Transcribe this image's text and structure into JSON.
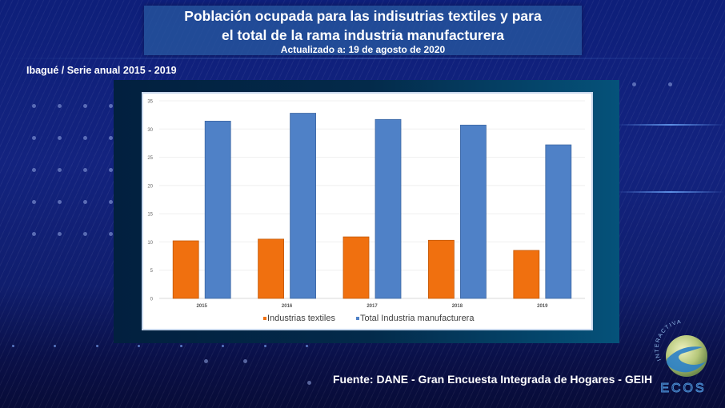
{
  "header": {
    "title_line1": "Población ocupada para las indisutrias textiles y para",
    "title_line2": "el total de la rama industria manufacturera",
    "updated": "Actualizado a: 19 de agosto de 2020"
  },
  "subtitle": "Ibagué / Serie anual 2015 - 2019",
  "source": "Fuente: DANE - Gran Encuesta Integrada de Hogares - GEIH",
  "logo": {
    "top_text": "INTERACTIVA",
    "bottom_text": "ECOS",
    "icon": "ecos-globe-logo"
  },
  "colors": {
    "textiles": "#f0700f",
    "total": "#4f81c7",
    "background": "#13237f"
  },
  "chart_data": {
    "type": "bar",
    "title": "",
    "xlabel": "",
    "ylabel": "",
    "categories": [
      "2015",
      "2016",
      "2017",
      "2018",
      "2019"
    ],
    "series": [
      {
        "name": "Industrias textiles",
        "values": [
          10.2,
          10.5,
          10.9,
          10.3,
          8.5
        ]
      },
      {
        "name": "Total Industria manufacturera",
        "values": [
          31.4,
          32.8,
          31.7,
          30.7,
          27.2
        ]
      }
    ],
    "ylim": [
      0,
      35
    ],
    "yticks": [
      "0",
      "5",
      "10",
      "15",
      "20",
      "25",
      "30",
      "35"
    ],
    "grid": true,
    "legend_position": "bottom"
  }
}
